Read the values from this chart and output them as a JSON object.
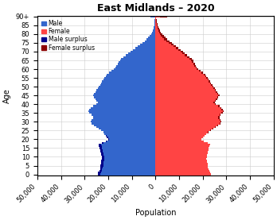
{
  "title": "East Midlands – 2020",
  "xlabel": "Population",
  "ylabel": "Age",
  "ages": [
    0,
    1,
    2,
    3,
    4,
    5,
    6,
    7,
    8,
    9,
    10,
    11,
    12,
    13,
    14,
    15,
    16,
    17,
    18,
    19,
    20,
    21,
    22,
    23,
    24,
    25,
    26,
    27,
    28,
    29,
    30,
    31,
    32,
    33,
    34,
    35,
    36,
    37,
    38,
    39,
    40,
    41,
    42,
    43,
    44,
    45,
    46,
    47,
    48,
    49,
    50,
    51,
    52,
    53,
    54,
    55,
    56,
    57,
    58,
    59,
    60,
    61,
    62,
    63,
    64,
    65,
    66,
    67,
    68,
    69,
    70,
    71,
    72,
    73,
    74,
    75,
    76,
    77,
    78,
    79,
    80,
    81,
    82,
    83,
    84,
    85,
    86,
    87,
    88,
    89,
    90
  ],
  "males": [
    24500,
    24200,
    23800,
    23500,
    23300,
    23200,
    23100,
    23000,
    22900,
    22700,
    22800,
    23000,
    23100,
    23200,
    23500,
    23700,
    23900,
    24000,
    22500,
    21000,
    20000,
    20500,
    21000,
    21500,
    22000,
    23000,
    24000,
    25000,
    26000,
    27000,
    27500,
    27000,
    26500,
    26500,
    27000,
    28000,
    28500,
    28000,
    27500,
    26500,
    25000,
    24500,
    25000,
    25500,
    26000,
    26500,
    26000,
    25500,
    25000,
    24500,
    24000,
    23500,
    23000,
    22500,
    22000,
    21500,
    21000,
    20500,
    19500,
    18500,
    17500,
    17000,
    16500,
    16000,
    15500,
    15000,
    14500,
    13500,
    12500,
    11500,
    10500,
    9500,
    8500,
    7500,
    6500,
    5500,
    4500,
    3700,
    3000,
    2400,
    1900,
    1500,
    1200,
    950,
    750,
    600,
    480,
    370,
    280,
    200,
    2000
  ],
  "females": [
    23300,
    23100,
    22800,
    22500,
    22200,
    22100,
    22000,
    21900,
    21800,
    21600,
    21700,
    21900,
    22000,
    22200,
    22400,
    22600,
    22800,
    23000,
    22000,
    20500,
    19500,
    20000,
    20800,
    21500,
    22500,
    23500,
    24500,
    25500,
    26500,
    27500,
    28000,
    27500,
    27000,
    27000,
    27500,
    28500,
    29000,
    28500,
    28000,
    27000,
    25500,
    25000,
    25500,
    26000,
    26500,
    27000,
    26500,
    26000,
    25500,
    25000,
    24500,
    24000,
    23500,
    23000,
    22500,
    22000,
    21500,
    21000,
    20000,
    19000,
    18000,
    17500,
    17000,
    16700,
    16200,
    16000,
    15500,
    14500,
    13500,
    12500,
    11700,
    10800,
    9800,
    8800,
    7800,
    6900,
    5900,
    5000,
    4200,
    3500,
    2900,
    2400,
    1950,
    1600,
    1280,
    1030,
    820,
    640,
    490,
    360,
    5000
  ],
  "male_color": "#3366cc",
  "female_color": "#ff4444",
  "male_surplus_color": "#00008b",
  "female_surplus_color": "#8b0000",
  "xlim": 50000,
  "background_color": "#ffffff",
  "grid_color": "#cccccc",
  "title_fontsize": 9,
  "axis_fontsize": 7,
  "tick_fontsize": 6
}
